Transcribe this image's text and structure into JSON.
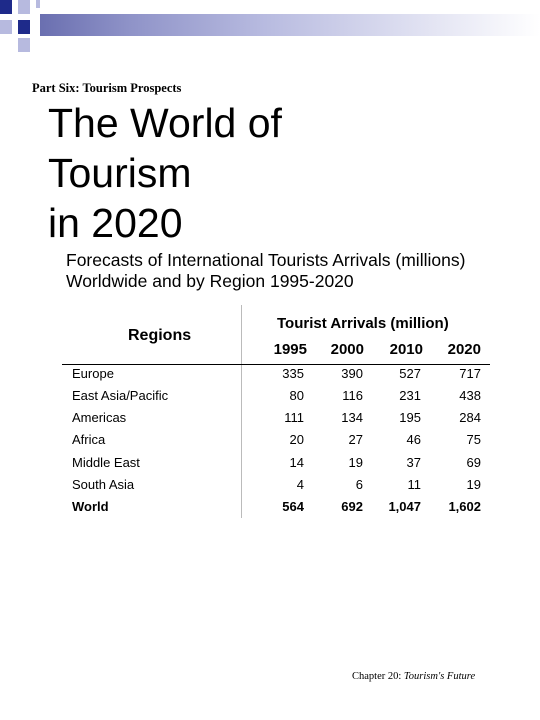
{
  "slide": {
    "part_label": "Part Six: Tourism Prospects",
    "title_lines": [
      "The World of",
      "Tourism",
      "in 2020"
    ],
    "subtitle_lines": [
      "Forecasts of International Tourists Arrivals (millions)",
      "Worldwide and by Region 1995-2020"
    ],
    "footer_chapter": "Chapter 20:",
    "footer_title": "Tourism's Future"
  },
  "table": {
    "regions_header": "Regions",
    "arrivals_header": "Tourist Arrivals (million)",
    "years": [
      "1995",
      "2000",
      "2010",
      "2020"
    ],
    "rows": [
      {
        "region": "Europe",
        "values": [
          "335",
          "390",
          "527",
          "717"
        ]
      },
      {
        "region": "East Asia/Pacific",
        "values": [
          "80",
          "116",
          "231",
          "438"
        ]
      },
      {
        "region": "Americas",
        "values": [
          "111",
          "134",
          "195",
          "284"
        ]
      },
      {
        "region": "Africa",
        "values": [
          "20",
          "27",
          "46",
          "75"
        ]
      },
      {
        "region": "Middle East",
        "values": [
          "14",
          "19",
          "37",
          "69"
        ]
      },
      {
        "region": "South Asia",
        "values": [
          "4",
          "6",
          "11",
          "19"
        ]
      },
      {
        "region": "World",
        "values": [
          "564",
          "692",
          "1,047",
          "1,602"
        ]
      }
    ]
  },
  "colors": {
    "banner_dark": "#1e2a8a",
    "banner_light": "#b7badf"
  }
}
